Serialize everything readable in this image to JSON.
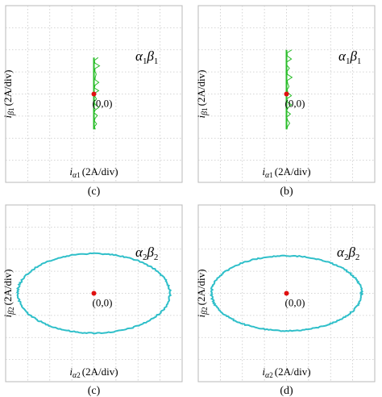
{
  "chart_data": [
    {
      "type": "scatter",
      "caption": "(c)",
      "subscript": "1",
      "xlabel": "(2A/div)",
      "ylabel": "(2A/div)",
      "annotation": "α",
      "annotation2": "β",
      "origin_label": "(0,0)",
      "trace_color": "#2bbd2b",
      "origin_color": "#e01010",
      "grid": true,
      "divisions": [
        8,
        8
      ],
      "xlim": [
        -8,
        8
      ],
      "ylim": [
        -8,
        8
      ],
      "shape": "vertical-line",
      "trace": {
        "x": 0,
        "y_range": [
          -3.2,
          3.3
        ]
      }
    },
    {
      "type": "scatter",
      "caption": "(b)",
      "subscript": "1",
      "xlabel": "(2A/div)",
      "ylabel": "(2A/div)",
      "annotation": "α",
      "annotation2": "β",
      "origin_label": "(0,0)",
      "trace_color": "#2bbd2b",
      "origin_color": "#e01010",
      "grid": true,
      "divisions": [
        8,
        8
      ],
      "xlim": [
        -8,
        8
      ],
      "ylim": [
        -8,
        8
      ],
      "shape": "vertical-line",
      "trace": {
        "x": 0,
        "y_range": [
          -3.2,
          4.0
        ]
      }
    },
    {
      "type": "scatter",
      "caption": "(c)",
      "subscript": "2",
      "xlabel": "(2A/div)",
      "ylabel": "(2A/div)",
      "annotation": "α",
      "annotation2": "β",
      "origin_label": "(0,0)",
      "trace_color": "#2fbfc9",
      "origin_color": "#e01010",
      "grid": true,
      "divisions": [
        8,
        8
      ],
      "xlim": [
        -8,
        8
      ],
      "ylim": [
        -8,
        8
      ],
      "shape": "ellipse",
      "trace": {
        "cx": 0,
        "cy": 0,
        "rx": 6.9,
        "ry": 3.6
      }
    },
    {
      "type": "scatter",
      "caption": "(d)",
      "subscript": "2",
      "xlabel": "(2A/div)",
      "ylabel": "(2A/div)",
      "annotation": "α",
      "annotation2": "β",
      "origin_label": "(0,0)",
      "trace_color": "#2fbfc9",
      "origin_color": "#e01010",
      "grid": true,
      "divisions": [
        8,
        8
      ],
      "xlim": [
        -8,
        8
      ],
      "ylim": [
        -8,
        8
      ],
      "shape": "ellipse",
      "trace": {
        "cx": 0,
        "cy": 0,
        "rx": 6.8,
        "ry": 3.4
      }
    }
  ]
}
